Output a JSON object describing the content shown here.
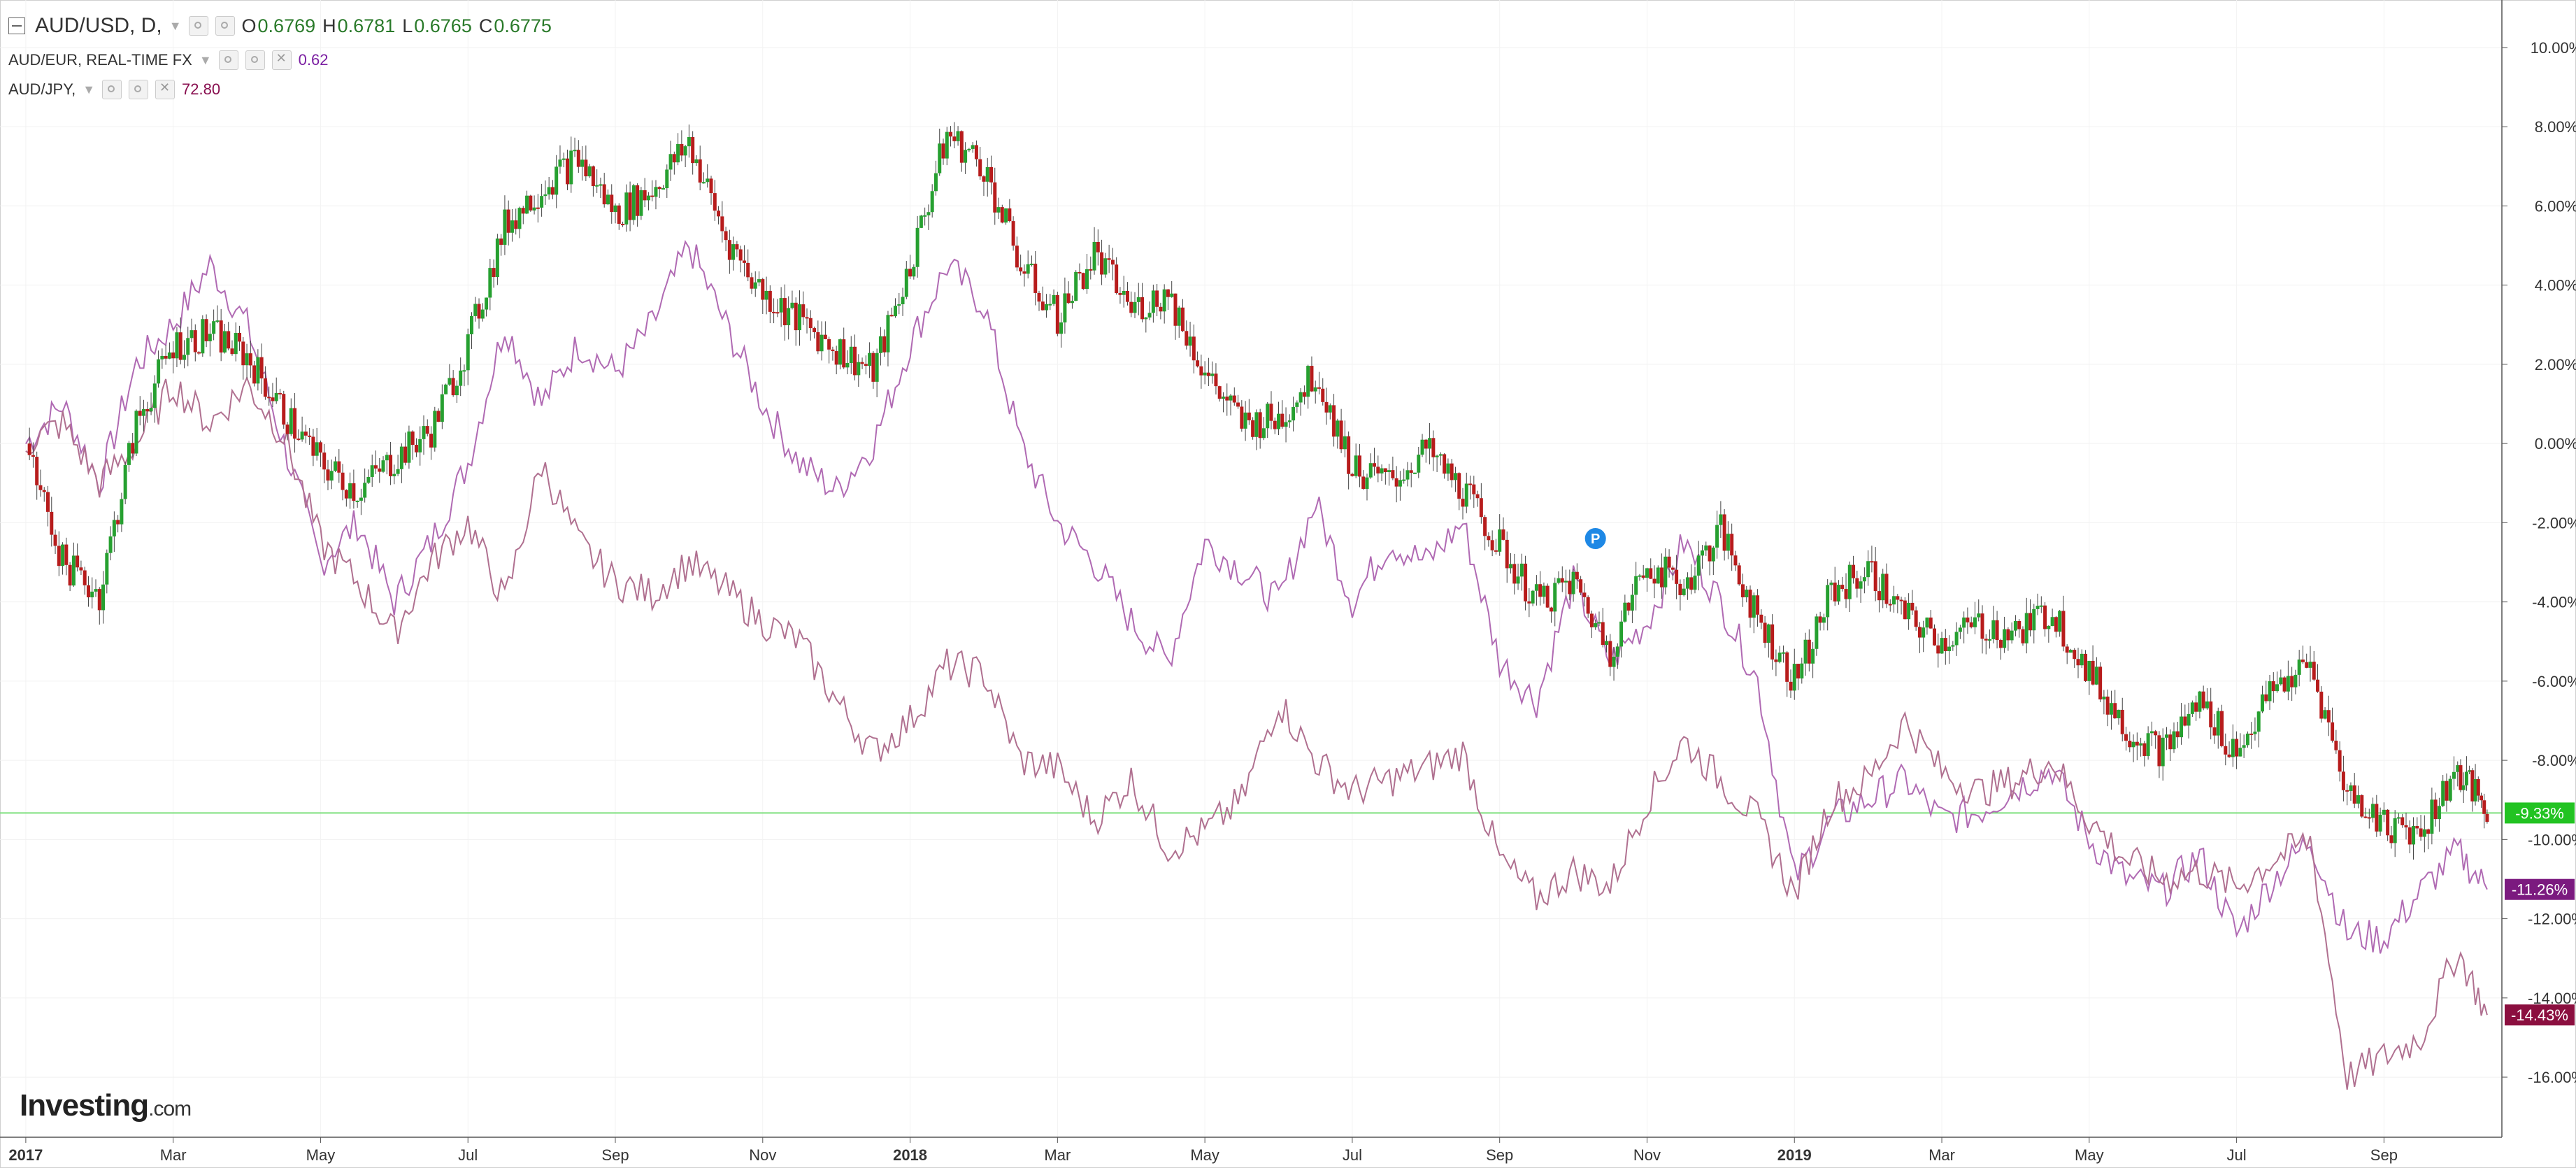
{
  "legend": {
    "main": {
      "symbol": "AUD/USD, D,",
      "open_label": "O",
      "open": "0.6769",
      "high_label": "H",
      "high": "0.6781",
      "low_label": "L",
      "low": "0.6765",
      "close_label": "C",
      "close": "0.6775"
    },
    "cmp1": {
      "symbol": "AUD/EUR, REAL-TIME FX",
      "value": "0.62",
      "color": "#7b1fa2"
    },
    "cmp2": {
      "symbol": "AUD/JPY,",
      "value": "72.80",
      "color": "#880e4f"
    }
  },
  "brand": {
    "name": "Investing",
    "domain": ".com"
  },
  "marker_label": "P",
  "colors": {
    "up": "#26a030",
    "down": "#b71c1c",
    "eur": "#b06ab3",
    "jpy": "#b07090",
    "price_line": "#7ee07e",
    "badge_usd": "#22c322",
    "badge_eur": "#7b1a7f",
    "badge_jpy": "#8b0f3f"
  },
  "chart_data": {
    "type": "line",
    "title": "",
    "xlabel": "",
    "ylabel": "",
    "y_unit": "percent change",
    "ylim": [
      -17.5,
      11.2
    ],
    "yticks": [
      "10.00%",
      "8.00%",
      "6.00%",
      "4.00%",
      "2.00%",
      "0.00%",
      "-2.00%",
      "-4.00%",
      "-6.00%",
      "-8.00%",
      "-10.00%",
      "-12.00%",
      "-14.00%",
      "-16.00%"
    ],
    "ytick_values": [
      10,
      8,
      6,
      4,
      2,
      0,
      -2,
      -4,
      -6,
      -8,
      -10,
      -12,
      -14,
      -16
    ],
    "xticks": [
      "2017",
      "Mar",
      "May",
      "Jul",
      "Sep",
      "Nov",
      "2018",
      "Mar",
      "May",
      "Jul",
      "Sep",
      "Nov",
      "2019",
      "Mar",
      "May",
      "Jul",
      "Sep"
    ],
    "xtick_bold": [
      true,
      false,
      false,
      false,
      false,
      false,
      true,
      false,
      false,
      false,
      false,
      false,
      true,
      false,
      false,
      false,
      false
    ],
    "x_month_index": [
      0,
      2,
      4,
      6,
      8,
      10,
      12,
      14,
      16,
      18,
      20,
      22,
      24,
      26,
      28,
      30,
      32
    ],
    "x_range_months": [
      -0.35,
      33.6
    ],
    "series": [
      {
        "name": "AUD/USD",
        "style": "candlestick",
        "points": [
          [
            0,
            0
          ],
          [
            0.5,
            -3
          ],
          [
            1,
            -3.8
          ],
          [
            1.5,
            0.5
          ],
          [
            2,
            2.5
          ],
          [
            2.5,
            2.8
          ],
          [
            3,
            2.2
          ],
          [
            3.5,
            0.8
          ],
          [
            4,
            -0.5
          ],
          [
            4.5,
            -1.2
          ],
          [
            5,
            -0.4
          ],
          [
            5.5,
            0.3
          ],
          [
            6,
            2.5
          ],
          [
            6.5,
            5.5
          ],
          [
            7,
            6.5
          ],
          [
            7.5,
            7.2
          ],
          [
            8,
            5.8
          ],
          [
            8.5,
            6.4
          ],
          [
            9,
            7.6
          ],
          [
            9.5,
            5.2
          ],
          [
            10,
            3.8
          ],
          [
            10.5,
            3.1
          ],
          [
            11,
            2.4
          ],
          [
            11.5,
            1.8
          ],
          [
            12,
            4.5
          ],
          [
            12.5,
            7.8
          ],
          [
            13,
            7
          ],
          [
            13.5,
            4.5
          ],
          [
            14,
            3.2
          ],
          [
            14.5,
            4.8
          ],
          [
            15,
            3.4
          ],
          [
            15.5,
            3.8
          ],
          [
            16,
            1.8
          ],
          [
            16.5,
            0.5
          ],
          [
            17,
            0.6
          ],
          [
            17.5,
            1.8
          ],
          [
            18,
            -0.6
          ],
          [
            18.5,
            -1
          ],
          [
            19,
            -0.2
          ],
          [
            19.5,
            -1.2
          ],
          [
            20,
            -2.6
          ],
          [
            20.5,
            -4
          ],
          [
            21,
            -3.5
          ],
          [
            21.5,
            -5.2
          ],
          [
            22,
            -3
          ],
          [
            22.5,
            -3.6
          ],
          [
            23,
            -2.2
          ],
          [
            23.5,
            -4.4
          ],
          [
            24,
            -6
          ],
          [
            24.5,
            -3.8
          ],
          [
            25,
            -3.2
          ],
          [
            25.5,
            -4.4
          ],
          [
            26,
            -5
          ],
          [
            26.5,
            -4.6
          ],
          [
            27,
            -4.8
          ],
          [
            27.5,
            -4.2
          ],
          [
            28,
            -5.8
          ],
          [
            28.5,
            -7.2
          ],
          [
            29,
            -7.8
          ],
          [
            29.5,
            -6.5
          ],
          [
            30,
            -7.8
          ],
          [
            30.5,
            -6.2
          ],
          [
            31,
            -5.6
          ],
          [
            31.5,
            -8.8
          ],
          [
            32,
            -9.6
          ],
          [
            32.5,
            -9.8
          ],
          [
            33,
            -8.2
          ],
          [
            33.4,
            -9.33
          ]
        ],
        "last_value": "-9.33%"
      },
      {
        "name": "AUD/EUR",
        "style": "line",
        "points": [
          [
            0,
            0
          ],
          [
            0.5,
            1
          ],
          [
            1,
            -1
          ],
          [
            1.5,
            2
          ],
          [
            2,
            3
          ],
          [
            2.5,
            4.5
          ],
          [
            3,
            3
          ],
          [
            3.5,
            0
          ],
          [
            4,
            -3
          ],
          [
            4.5,
            -2
          ],
          [
            5,
            -4
          ],
          [
            5.5,
            -2.5
          ],
          [
            6,
            -0.5
          ],
          [
            6.5,
            3
          ],
          [
            7,
            1
          ],
          [
            7.5,
            2.5
          ],
          [
            8,
            1.8
          ],
          [
            8.5,
            3
          ],
          [
            9,
            5
          ],
          [
            9.5,
            3
          ],
          [
            10,
            1
          ],
          [
            10.5,
            -0.5
          ],
          [
            11,
            -1.2
          ],
          [
            11.5,
            0
          ],
          [
            12,
            2.5
          ],
          [
            12.5,
            4.5
          ],
          [
            13,
            3.5
          ],
          [
            13.5,
            0
          ],
          [
            14,
            -2
          ],
          [
            14.5,
            -3
          ],
          [
            15,
            -4.5
          ],
          [
            15.5,
            -5.5
          ],
          [
            16,
            -2.5
          ],
          [
            16.5,
            -3.2
          ],
          [
            17,
            -4
          ],
          [
            17.5,
            -1.5
          ],
          [
            18,
            -4
          ],
          [
            18.5,
            -2.5
          ],
          [
            19,
            -3
          ],
          [
            19.5,
            -2
          ],
          [
            20,
            -5.5
          ],
          [
            20.5,
            -6.5
          ],
          [
            21,
            -3.5
          ],
          [
            21.5,
            -5.5
          ],
          [
            22,
            -4.5
          ],
          [
            22.5,
            -2.5
          ],
          [
            23,
            -4
          ],
          [
            23.5,
            -6
          ],
          [
            24,
            -11
          ],
          [
            24.5,
            -9.5
          ],
          [
            25,
            -9
          ],
          [
            25.5,
            -8.5
          ],
          [
            26,
            -9.5
          ],
          [
            26.5,
            -9.3
          ],
          [
            27,
            -8.7
          ],
          [
            27.5,
            -8.2
          ],
          [
            28,
            -10
          ],
          [
            28.5,
            -11
          ],
          [
            29,
            -11.3
          ],
          [
            29.5,
            -10.4
          ],
          [
            30,
            -12.4
          ],
          [
            30.5,
            -11
          ],
          [
            31,
            -10
          ],
          [
            31.5,
            -12.4
          ],
          [
            32,
            -12.5
          ],
          [
            32.5,
            -11.3
          ],
          [
            33,
            -10.3
          ],
          [
            33.4,
            -11.26
          ]
        ],
        "last_value": "-11.26%"
      },
      {
        "name": "AUD/JPY",
        "style": "line",
        "points": [
          [
            0,
            0
          ],
          [
            0.5,
            0.5
          ],
          [
            1,
            -1
          ],
          [
            1.5,
            0
          ],
          [
            2,
            1.5
          ],
          [
            2.5,
            0.5
          ],
          [
            3,
            1.5
          ],
          [
            3.5,
            0.2
          ],
          [
            4,
            -2.5
          ],
          [
            4.5,
            -3.5
          ],
          [
            5,
            -4.8
          ],
          [
            5.5,
            -3
          ],
          [
            6,
            -2
          ],
          [
            6.5,
            -4
          ],
          [
            7,
            -0.5
          ],
          [
            7.5,
            -2.5
          ],
          [
            8,
            -3.5
          ],
          [
            8.5,
            -3.8
          ],
          [
            9,
            -3
          ],
          [
            9.5,
            -3.7
          ],
          [
            10,
            -4.5
          ],
          [
            10.5,
            -5
          ],
          [
            11,
            -6.5
          ],
          [
            11.5,
            -7.8
          ],
          [
            12,
            -7
          ],
          [
            12.5,
            -5.6
          ],
          [
            13,
            -5.8
          ],
          [
            13.5,
            -8
          ],
          [
            14,
            -8.2
          ],
          [
            14.5,
            -9.5
          ],
          [
            15,
            -8.5
          ],
          [
            15.5,
            -10.2
          ],
          [
            16,
            -9.8
          ],
          [
            16.5,
            -9
          ],
          [
            17,
            -6.5
          ],
          [
            17.5,
            -8
          ],
          [
            18,
            -8.8
          ],
          [
            18.5,
            -8.5
          ],
          [
            19,
            -8.2
          ],
          [
            19.5,
            -7.8
          ],
          [
            20,
            -10.5
          ],
          [
            20.5,
            -11.5
          ],
          [
            21,
            -10.8
          ],
          [
            21.5,
            -11.2
          ],
          [
            22,
            -9
          ],
          [
            22.5,
            -7.5
          ],
          [
            23,
            -8.5
          ],
          [
            23.5,
            -9.5
          ],
          [
            24,
            -11.4
          ],
          [
            24.5,
            -9
          ],
          [
            25,
            -8.5
          ],
          [
            25.5,
            -7
          ],
          [
            26,
            -8.3
          ],
          [
            26.5,
            -8.8
          ],
          [
            27,
            -8.5
          ],
          [
            27.5,
            -8
          ],
          [
            28,
            -9.5
          ],
          [
            28.5,
            -10.5
          ],
          [
            29,
            -11
          ],
          [
            29.5,
            -10.8
          ],
          [
            30,
            -11.2
          ],
          [
            30.5,
            -10.5
          ],
          [
            31,
            -10
          ],
          [
            31.5,
            -16
          ],
          [
            32,
            -15.5
          ],
          [
            32.5,
            -15
          ],
          [
            33,
            -12.8
          ],
          [
            33.4,
            -14.43
          ]
        ],
        "last_value": "-14.43%"
      }
    ],
    "current_price_line": -9.33,
    "marker_point": [
      21.3,
      -2.4
    ],
    "grid": true,
    "legend_position": "top-left"
  }
}
